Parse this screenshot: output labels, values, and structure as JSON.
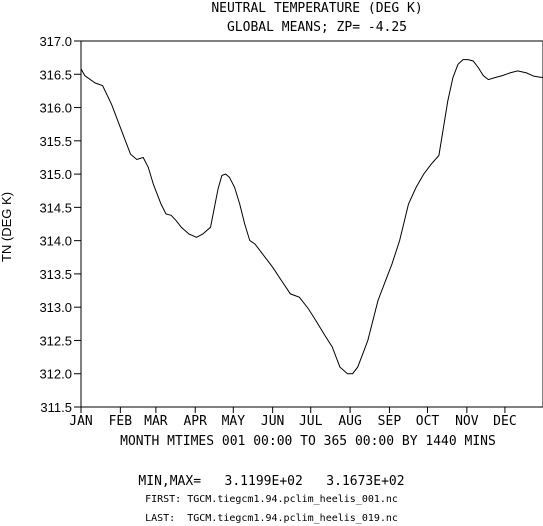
{
  "chart_data": {
    "type": "line",
    "title": "NEUTRAL TEMPERATURE (DEG K)",
    "subtitle": "GLOBAL MEANS; ZP= -4.25",
    "ylabel": "TN (DEG K)",
    "xlabel": "MONTH MTIMES 001 00:00 TO 365 00:00 BY 1440 MINS",
    "xlim": [
      1,
      365
    ],
    "ylim": [
      311.5,
      317.0
    ],
    "yticks": [
      311.5,
      312.0,
      312.5,
      313.0,
      313.5,
      314.0,
      314.5,
      315.0,
      315.5,
      316.0,
      316.5,
      317.0
    ],
    "yticklabels": [
      "311.5",
      "312.0",
      "312.5",
      "313.0",
      "313.5",
      "314.0",
      "314.5",
      "315.0",
      "315.5",
      "316.0",
      "316.5",
      "317.0"
    ],
    "months": [
      {
        "label": "JAN",
        "day": 1
      },
      {
        "label": "FEB",
        "day": 32
      },
      {
        "label": "MAR",
        "day": 60
      },
      {
        "label": "APR",
        "day": 91
      },
      {
        "label": "MAY",
        "day": 121
      },
      {
        "label": "JUN",
        "day": 152
      },
      {
        "label": "JUL",
        "day": 182
      },
      {
        "label": "AUG",
        "day": 213
      },
      {
        "label": "SEP",
        "day": 244
      },
      {
        "label": "OCT",
        "day": 274
      },
      {
        "label": "NOV",
        "day": 305
      },
      {
        "label": "DEC",
        "day": 335
      }
    ],
    "series": [
      {
        "x": [
          1,
          4,
          12,
          18,
          25,
          31,
          36,
          40,
          45,
          50,
          54,
          58,
          64,
          68,
          72,
          76,
          80,
          86,
          92,
          97,
          103,
          109,
          112,
          115,
          118,
          122,
          126,
          130,
          134,
          138,
          142,
          148,
          152,
          159,
          166,
          173,
          180,
          186,
          193,
          199,
          205,
          211,
          215,
          219,
          223,
          227,
          231,
          235,
          241,
          246,
          252,
          259,
          265,
          271,
          277,
          283,
          290,
          294,
          298,
          302,
          306,
          310,
          314,
          318,
          322,
          327,
          333,
          339,
          345,
          352,
          358,
          365
        ],
        "y": [
          316.58,
          316.48,
          316.37,
          316.33,
          316.05,
          315.75,
          315.5,
          315.3,
          315.22,
          315.25,
          315.1,
          314.85,
          314.55,
          314.4,
          314.38,
          314.3,
          314.2,
          314.1,
          314.05,
          314.1,
          314.2,
          314.78,
          314.98,
          315.0,
          314.95,
          314.8,
          314.55,
          314.25,
          314.0,
          313.95,
          313.85,
          313.7,
          313.6,
          313.4,
          313.2,
          313.15,
          312.98,
          312.8,
          312.58,
          312.4,
          312.1,
          312.0,
          312.0,
          312.1,
          312.3,
          312.5,
          312.8,
          313.1,
          313.4,
          313.65,
          314.0,
          314.55,
          314.8,
          315.0,
          315.15,
          315.28,
          316.1,
          316.45,
          316.65,
          316.72,
          316.72,
          316.7,
          316.6,
          316.48,
          316.42,
          316.45,
          316.48,
          316.52,
          316.55,
          316.52,
          316.47,
          316.45
        ]
      }
    ]
  },
  "footer": {
    "minmax_label": "MIN,MAX=",
    "min_value": "3.1199E+02",
    "max_value": "3.1673E+02",
    "first_label": "FIRST:",
    "first_file": "TGCM.tiegcm1.94.pclim_heelis_001.nc",
    "last_label": "LAST:",
    "last_file": "TGCM.tiegcm1.94.pclim_heelis_019.nc"
  }
}
